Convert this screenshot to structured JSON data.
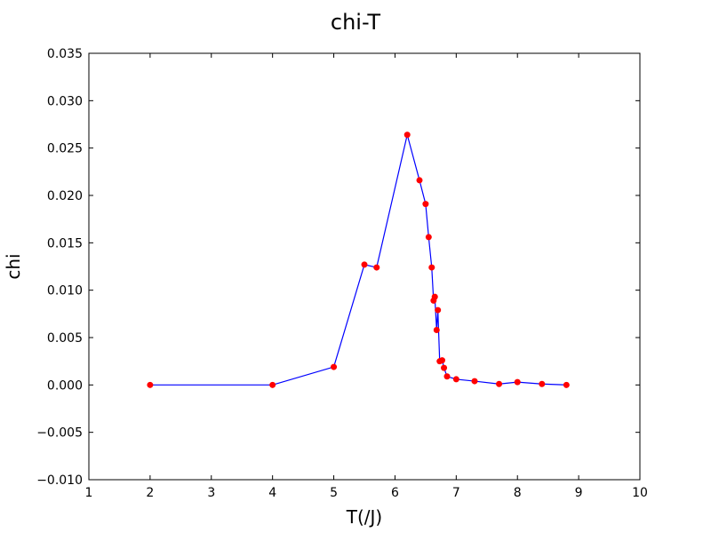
{
  "chart_data": {
    "type": "line",
    "title": "chi-T",
    "xlabel": "T(/J)",
    "ylabel": "chi",
    "xlim": [
      1,
      10
    ],
    "ylim": [
      -0.01,
      0.035
    ],
    "xticks": [
      1,
      2,
      3,
      4,
      5,
      6,
      7,
      8,
      9,
      10
    ],
    "xtick_labels": [
      "1",
      "2",
      "3",
      "4",
      "5",
      "6",
      "7",
      "8",
      "9",
      "10"
    ],
    "yticks": [
      -0.01,
      -0.005,
      0.0,
      0.005,
      0.01,
      0.015,
      0.02,
      0.025,
      0.03,
      0.035
    ],
    "ytick_labels": [
      "−0.010",
      "−0.005",
      "0.000",
      "0.005",
      "0.010",
      "0.015",
      "0.020",
      "0.025",
      "0.030",
      "0.035"
    ],
    "grid": false,
    "line_color": "#0000ff",
    "marker_color": "#ff0000",
    "series": [
      {
        "x": [
          2.0,
          4.0,
          5.0,
          5.5,
          5.7,
          6.2,
          6.4,
          6.5,
          6.55,
          6.6,
          6.63,
          6.65,
          6.68,
          6.7,
          6.73,
          6.77,
          6.8,
          6.85,
          7.0,
          7.3,
          7.7,
          8.0,
          8.4,
          8.8
        ],
        "y": [
          0.0,
          0.0,
          0.0019,
          0.0127,
          0.0124,
          0.0264,
          0.0216,
          0.0191,
          0.0156,
          0.0124,
          0.0089,
          0.0093,
          0.0058,
          0.0079,
          0.0025,
          0.0026,
          0.0018,
          0.0009,
          0.0006,
          0.0004,
          0.0001,
          0.0003,
          0.0001,
          0.0
        ]
      }
    ]
  }
}
